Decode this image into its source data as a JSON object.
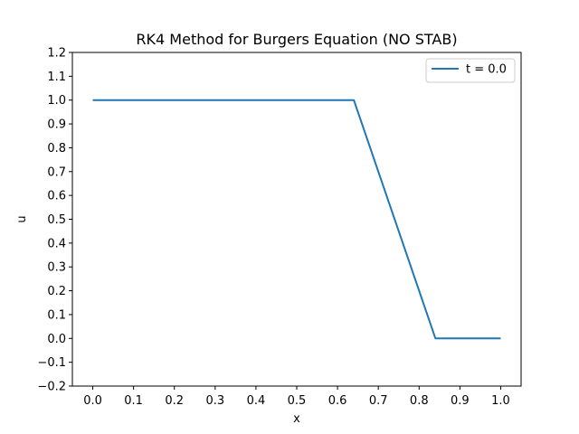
{
  "chart_data": {
    "type": "line",
    "title": "RK4 Method for Burgers Equation (NO STAB)",
    "xlabel": "x",
    "ylabel": "u",
    "xlim": [
      -0.05,
      1.05
    ],
    "ylim": [
      -0.2,
      1.2
    ],
    "xticks": [
      0.0,
      0.1,
      0.2,
      0.3,
      0.4,
      0.5,
      0.6,
      0.7,
      0.8,
      0.9,
      1.0
    ],
    "xtick_labels": [
      "0.0",
      "0.1",
      "0.2",
      "0.3",
      "0.4",
      "0.5",
      "0.6",
      "0.7",
      "0.8",
      "0.9",
      "1.0"
    ],
    "yticks": [
      -0.2,
      -0.1,
      0.0,
      0.1,
      0.2,
      0.3,
      0.4,
      0.5,
      0.6,
      0.7,
      0.8,
      0.9,
      1.0,
      1.1,
      1.2
    ],
    "ytick_labels": [
      "−0.2",
      "−0.1",
      "0.0",
      "0.1",
      "0.2",
      "0.3",
      "0.4",
      "0.5",
      "0.6",
      "0.7",
      "0.8",
      "0.9",
      "1.0",
      "1.1",
      "1.2"
    ],
    "grid": false,
    "legend_position": "top-right",
    "series": [
      {
        "name": "t = 0.0",
        "color": "#1f77b4",
        "x": [
          0.0,
          0.64,
          0.84,
          1.0
        ],
        "y": [
          1.0,
          1.0,
          0.0,
          0.0
        ]
      }
    ]
  }
}
